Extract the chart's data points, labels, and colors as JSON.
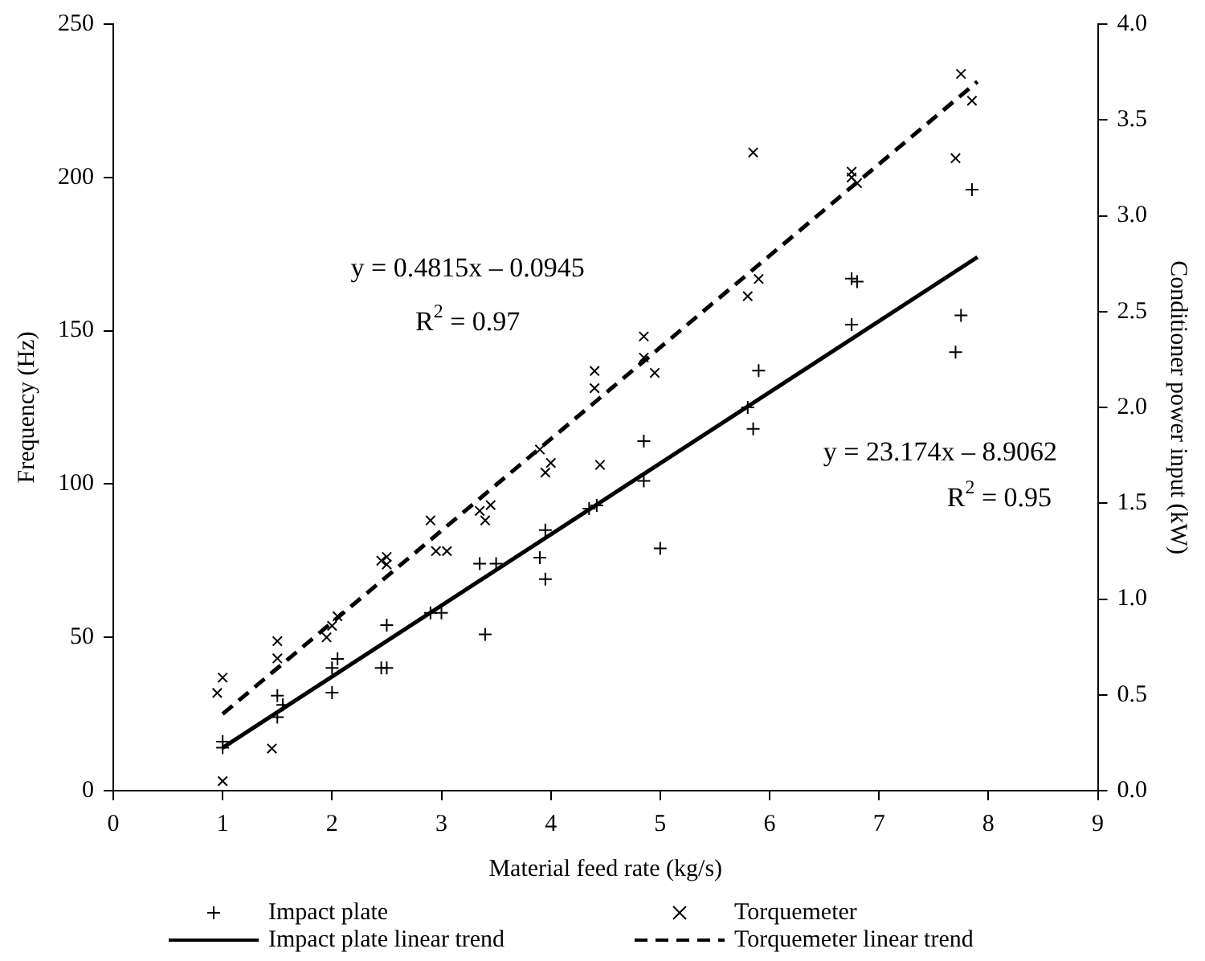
{
  "chart_data": {
    "type": "scatter",
    "xlabel": "Material feed rate (kg/s)",
    "ylabel": "Frequency (Hz)",
    "y2label": "Conditioner power input (kW)",
    "xlim": [
      0,
      9
    ],
    "xticks": [
      0,
      1,
      2,
      3,
      4,
      5,
      6,
      7,
      8,
      9
    ],
    "ylim": [
      0,
      250
    ],
    "yticks": [
      0,
      50,
      100,
      150,
      200,
      250
    ],
    "y2lim": [
      0,
      4
    ],
    "y2ticks": [
      {
        "value": 0,
        "label": "0.0"
      },
      {
        "value": 0.5,
        "label": "0.5"
      },
      {
        "value": 1,
        "label": "1.0"
      },
      {
        "value": 1.5,
        "label": "1.5"
      },
      {
        "value": 2,
        "label": "2.0"
      },
      {
        "value": 2.5,
        "label": "2.5"
      },
      {
        "value": 3,
        "label": "3.0"
      },
      {
        "value": 3.5,
        "label": "3.5"
      },
      {
        "value": 4,
        "label": "4.0"
      }
    ],
    "grid": false,
    "legend": "bottom",
    "series": [
      {
        "name": "Impact plate",
        "type": "scatter",
        "marker": "cross",
        "color": "#000000",
        "x": [
          1,
          1,
          1.5,
          1.5,
          1.55,
          2,
          2,
          2.05,
          2.45,
          2.5,
          2.5,
          2.9,
          3,
          3.35,
          3.4,
          3.5,
          3.9,
          3.95,
          3.95,
          4.35,
          4.42,
          4.85,
          4.85,
          5,
          5.8,
          5.85,
          5.9,
          6.75,
          6.8,
          6.75,
          7.7,
          7.75,
          7.85
        ],
        "values": [
          14,
          16,
          31,
          24,
          28,
          40,
          32,
          43,
          40,
          40,
          54,
          58,
          58,
          74,
          51,
          74,
          76,
          69,
          85,
          92,
          93,
          114,
          101,
          79,
          125,
          118,
          137,
          152,
          166,
          167,
          143,
          155,
          196
        ]
      },
      {
        "name": "Torquemeter",
        "type": "scatter",
        "marker": "x",
        "axis": "y2",
        "color": "#000000",
        "x": [
          1,
          0.95,
          1,
          1.45,
          1.5,
          1.5,
          1.95,
          2,
          2.05,
          2.45,
          2.5,
          2.5,
          2.9,
          2.95,
          3.05,
          3.35,
          3.4,
          3.45,
          3.9,
          3.95,
          4,
          4.4,
          4.4,
          4.45,
          4.85,
          4.85,
          4.95,
          5.8,
          5.85,
          5.9,
          6.75,
          6.75,
          6.8,
          7.7,
          7.75,
          7.85
        ],
        "values": [
          0.05,
          0.51,
          0.59,
          0.22,
          0.69,
          0.78,
          0.8,
          0.86,
          0.91,
          1.2,
          1.22,
          1.18,
          1.41,
          1.25,
          1.25,
          1.46,
          1.41,
          1.49,
          1.78,
          1.66,
          1.71,
          2.19,
          2.1,
          1.7,
          2.37,
          2.26,
          2.18,
          2.58,
          3.33,
          2.67,
          3.2,
          3.23,
          3.17,
          3.3,
          3.74,
          3.6
        ]
      },
      {
        "name": "Impact plate linear trend",
        "type": "line",
        "line_style": "solid",
        "color": "#000000",
        "x": [
          1,
          7.9
        ],
        "values": [
          14,
          174
        ]
      },
      {
        "name": "Torquemeter linear trend",
        "type": "line",
        "line_style": "dashed",
        "axis": "y2",
        "color": "#000000",
        "x": [
          1,
          7.9
        ],
        "values": [
          0.4,
          3.7
        ]
      }
    ],
    "annotations": [
      "y = 0.4815x – 0.0945",
      "R$^{2}$ = 0.97",
      "y = 23.174x – 8.9062",
      "R$^{2}$ = 0.95"
    ]
  }
}
